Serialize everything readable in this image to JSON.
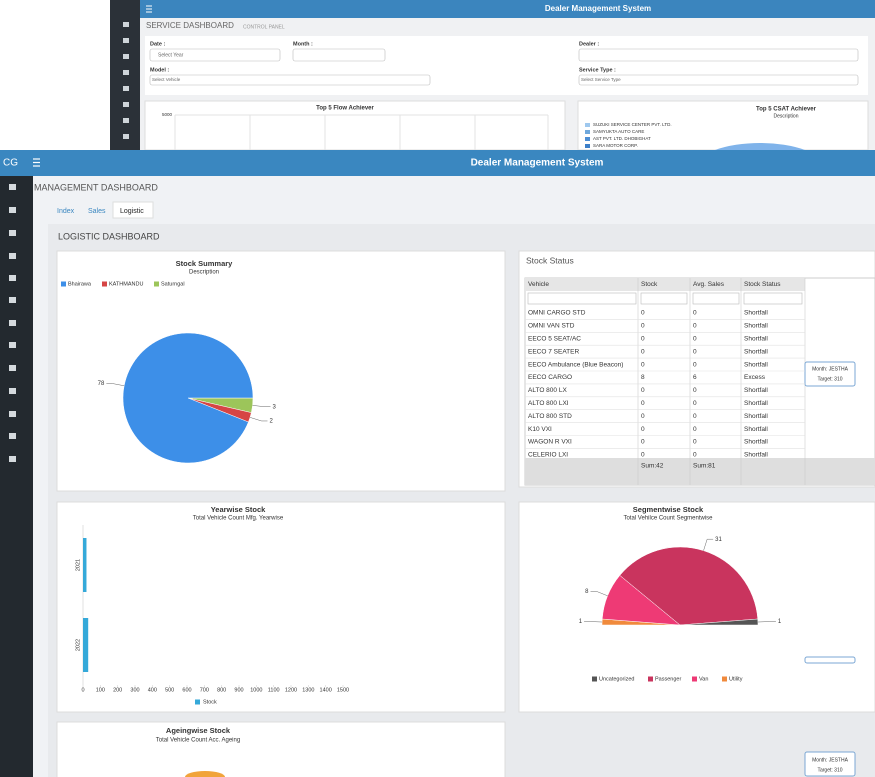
{
  "back": {
    "header": "Dealer Management System",
    "page_title": "SERVICE DASHBOARD",
    "page_subtitle": "CONTROL PANEL",
    "form": {
      "date_label": "Date :",
      "date_placeholder": "Select Year",
      "month_label": "Month :",
      "dealer_label": "Dealer :",
      "model_label": "Model :",
      "model_placeholder": "Select Vehicle",
      "service_label": "Service Type :",
      "service_placeholder": "Select Service Type"
    },
    "flow": {
      "title": "Top 5 Flow Achiever",
      "ytick": "5000"
    },
    "csat": {
      "title": "Top 5 CSAT Achiever",
      "subtitle": "Description",
      "legend": [
        "SUZUKI SERVICE CENTER PVT. LTD.",
        "SAMYUKTA AUTO CARE",
        "AST PVT. LTD. DHOBIGHAT",
        "SARA MOTOR CORP."
      ]
    }
  },
  "front": {
    "logo": "CG",
    "header": "Dealer Management System",
    "page_title": "MANAGEMENT DASHBOARD",
    "tabs": [
      "Index",
      "Sales",
      "Logistic"
    ],
    "section_title": "LOGISTIC DASHBOARD",
    "stock_status": {
      "title": "Stock Status",
      "columns": [
        "Vehicle",
        "Stock",
        "Avg. Sales",
        "Stock Status"
      ],
      "rows": [
        [
          "OMNI CARGO STD",
          "0",
          "0",
          "Shortfall"
        ],
        [
          "OMNI VAN STD",
          "0",
          "0",
          "Shortfall"
        ],
        [
          "EECO 5 SEAT/AC",
          "0",
          "0",
          "Shortfall"
        ],
        [
          "EECO 7 SEATER",
          "0",
          "0",
          "Shortfall"
        ],
        [
          "EECO Ambulance (Blue Beacon)",
          "0",
          "0",
          "Shortfall"
        ],
        [
          "EECO CARGO",
          "8",
          "6",
          "Excess"
        ],
        [
          "ALTO 800 LX",
          "0",
          "0",
          "Shortfall"
        ],
        [
          "ALTO 800 LXI",
          "0",
          "0",
          "Shortfall"
        ],
        [
          "ALTO 800 STD",
          "0",
          "0",
          "Shortfall"
        ],
        [
          "K10 VXI",
          "0",
          "0",
          "Shortfall"
        ],
        [
          "WAGON R VXI",
          "0",
          "0",
          "Shortfall"
        ],
        [
          "CELERIO LXI",
          "0",
          "0",
          "Shortfall"
        ]
      ],
      "sums": [
        "Sum:42",
        "Sum:81"
      ]
    },
    "tooltips": [
      {
        "month": "Month: JESTHA",
        "target": "Target: 310"
      },
      {
        "month": "Month: JESTHA",
        "target": "Target: 310"
      }
    ],
    "ageing": {
      "title": "Ageingwise Stock",
      "subtitle": "Total Vehicle Count Acc. Ageing"
    }
  },
  "chart_data": [
    {
      "type": "pie",
      "title": "Stock Summary",
      "subtitle": "Description",
      "categories": [
        "Bhairawa",
        "KATHMANDU",
        "Saturngal"
      ],
      "values": [
        78,
        2,
        3
      ],
      "colors": [
        "#3d8fe8",
        "#d64545",
        "#9cc55a"
      ]
    },
    {
      "type": "bar",
      "horizontal": true,
      "title": "Yearwise Stock",
      "subtitle": "Total Vehicle Count Mfg. Yearwise",
      "categories": [
        "2021",
        "2022"
      ],
      "series": [
        {
          "name": "Stock",
          "color": "#35a9d9",
          "values": [
            20,
            30
          ]
        }
      ],
      "xlim": [
        0,
        1500
      ],
      "xticks": [
        0,
        100,
        200,
        300,
        400,
        500,
        600,
        700,
        800,
        900,
        1000,
        1100,
        1200,
        1300,
        1400,
        1500
      ]
    },
    {
      "type": "pie",
      "semicircle": true,
      "title": "Segmentwise Stock",
      "subtitle": "Total Vehilce Count Segmentwise",
      "categories": [
        "Uncategorized",
        "Passenger",
        "Van",
        "Utility"
      ],
      "values": [
        1,
        31,
        8,
        1
      ],
      "colors": [
        "#555555",
        "#c9345e",
        "#ee3a75",
        "#f08a3c"
      ]
    }
  ]
}
